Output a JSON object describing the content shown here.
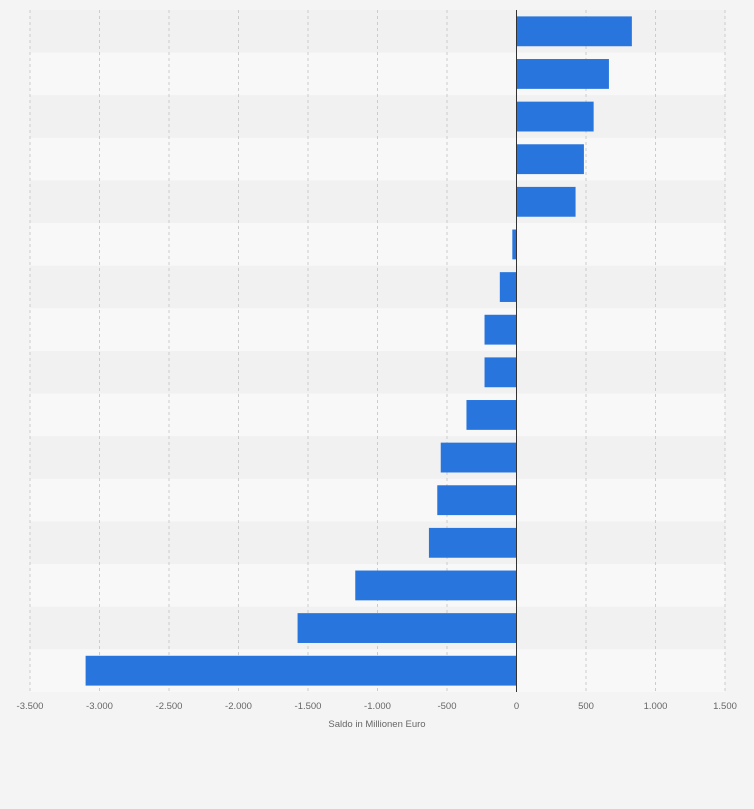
{
  "chart_data": {
    "type": "bar",
    "orientation": "horizontal",
    "title": "",
    "xlabel": "Saldo in Millionen Euro",
    "ylabel": "",
    "xlim": [
      -3500,
      1500
    ],
    "x_ticks": [
      -3500,
      -3000,
      -2500,
      -2000,
      -1500,
      -1000,
      -500,
      0,
      500,
      1000,
      1500
    ],
    "x_tick_labels": [
      "-3.500",
      "-3.000",
      "-2.500",
      "-2.000",
      "-1.500",
      "-1.000",
      "-500",
      "0",
      "500",
      "1.000",
      "1.500"
    ],
    "categories": [
      "",
      "",
      "",
      "",
      "",
      "",
      "",
      "",
      "",
      "",
      "",
      "",
      "",
      "",
      "",
      ""
    ],
    "values": [
      830,
      665,
      555,
      485,
      425,
      -30,
      -120,
      -230,
      -230,
      -360,
      -545,
      -570,
      -630,
      -1160,
      -1575,
      -3100
    ],
    "grid": true,
    "colors": {
      "bar": "#2876dd",
      "background": "#f4f4f4",
      "band_light": "#f8f8f8",
      "band_dark": "#f1f1f1",
      "grid": "#cccccc",
      "zero_line": "#333333"
    }
  }
}
